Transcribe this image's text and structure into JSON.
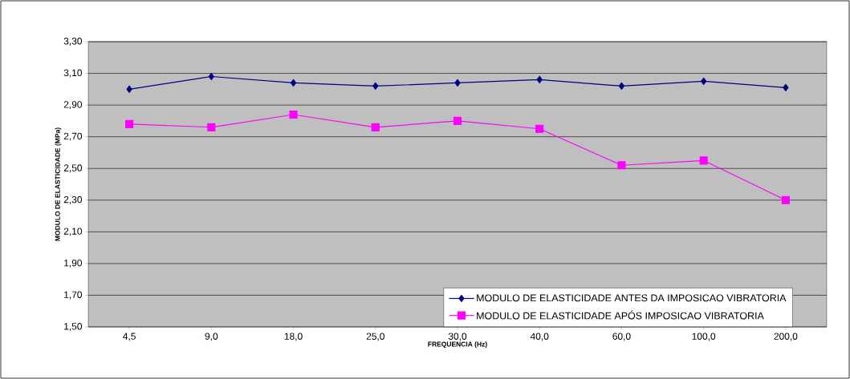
{
  "chart_data": {
    "type": "line",
    "xlabel": "FREQUENCIA (Hz)",
    "ylabel": "MODULO DE ELASTICIDADE (MPa)",
    "categories": [
      "4,5",
      "9,0",
      "18,0",
      "25,0",
      "30,0",
      "40,0",
      "60,0",
      "100,0",
      "200,0"
    ],
    "series": [
      {
        "name": "MODULO DE ELASTICIDADE ANTES DA IMPOSICAO VIBRATORIA",
        "color": "#000080",
        "marker": "diamond",
        "values": [
          3.0,
          3.08,
          3.04,
          3.02,
          3.04,
          3.06,
          3.02,
          3.05,
          3.01
        ]
      },
      {
        "name": "MODULO DE ELASTICIDADE APÓS IMPOSICAO VIBRATORIA",
        "color": "#ff00ff",
        "marker": "square",
        "values": [
          2.78,
          2.76,
          2.84,
          2.76,
          2.8,
          2.75,
          2.52,
          2.55,
          2.3
        ]
      }
    ],
    "ylim": [
      1.5,
      3.3
    ],
    "yticks": [
      {
        "value": 1.5,
        "label": "1,50"
      },
      {
        "value": 1.7,
        "label": "1,70"
      },
      {
        "value": 1.9,
        "label": "1,90"
      },
      {
        "value": 2.1,
        "label": "2,10"
      },
      {
        "value": 2.3,
        "label": "2,30"
      },
      {
        "value": 2.5,
        "label": "2,50"
      },
      {
        "value": 2.7,
        "label": "2,70"
      },
      {
        "value": 2.9,
        "label": "2,90"
      },
      {
        "value": 3.1,
        "label": "3,10"
      },
      {
        "value": 3.3,
        "label": "3,30"
      }
    ],
    "grid": "y",
    "legend": "bottom right"
  }
}
